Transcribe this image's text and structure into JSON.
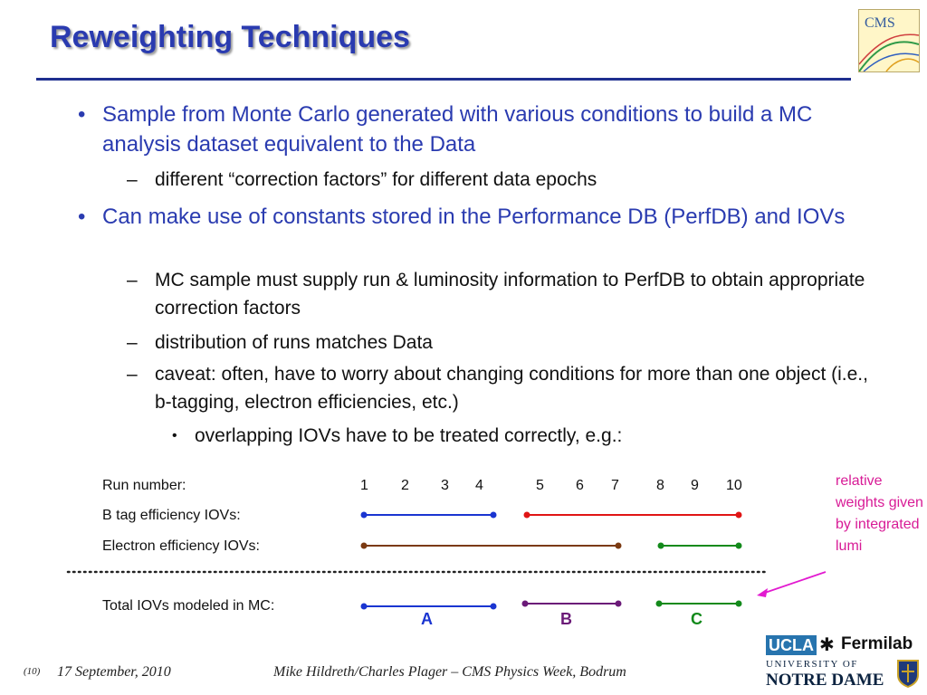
{
  "title": "Reweighting Techniques",
  "bullets": {
    "b1": "Sample from Monte Carlo generated with various conditions to build a MC analysis dataset equivalent to the Data",
    "b1_1": "different “correction factors” for different data epochs",
    "b2": "Can make use of constants stored in the Performance DB (PerfDB) and IOVs",
    "b2_1": "MC sample must supply run & luminosity information to PerfDB to obtain appropriate correction factors",
    "b2_2": "distribution of runs matches Data",
    "b2_3": "caveat: often, have to worry about changing conditions for more than one object (i.e., b-tagging, electron efficiencies, etc.)",
    "b2_3_1": "overlapping IOVs have to be treated correctly, e.g.:"
  },
  "glyphs": {
    "bullet": "•",
    "dash": "–"
  },
  "diagram": {
    "run_label": "Run number:",
    "btag_label": "B tag efficiency IOVs:",
    "electron_label": "Electron efficiency IOVs:",
    "total_label": "Total IOVs modeled in MC:",
    "runs": [
      "1",
      "2",
      "3",
      "4",
      "5",
      "6",
      "7",
      "8",
      "9",
      "10"
    ],
    "letters": [
      "A",
      "B",
      "C"
    ],
    "note": "relative weights given by integrated lumi",
    "iovs": {
      "btag": [
        {
          "from": 1,
          "to": 4,
          "color": "#1a35d1"
        },
        {
          "from": 5,
          "to": 10,
          "color": "#e01515"
        }
      ],
      "electron": [
        {
          "from": 1,
          "to": 7,
          "color": "#7b3a12"
        },
        {
          "from": 8,
          "to": 10,
          "color": "#138a1b"
        }
      ],
      "total": [
        {
          "from": 1,
          "to": 4,
          "color": "#1a35d1"
        },
        {
          "from": 5,
          "to": 7,
          "color": "#6b1a78"
        },
        {
          "from": 8,
          "to": 10,
          "color": "#138a1b"
        }
      ]
    },
    "letter_colors": [
      "#1a35d1",
      "#6b1a78",
      "#138a1b"
    ],
    "arrow_color": "#e21ad0"
  },
  "footer": {
    "slide_number": "(10)",
    "date": "17 September, 2010",
    "author": "Mike Hildreth/Charles Plager – CMS Physics Week, Bodrum"
  },
  "logos": {
    "cms": "CMS",
    "ucla": "UCLA",
    "fermilab": "Fermilab",
    "nd_line1": "UNIVERSITY OF",
    "nd_line2": "NOTRE DAME"
  }
}
